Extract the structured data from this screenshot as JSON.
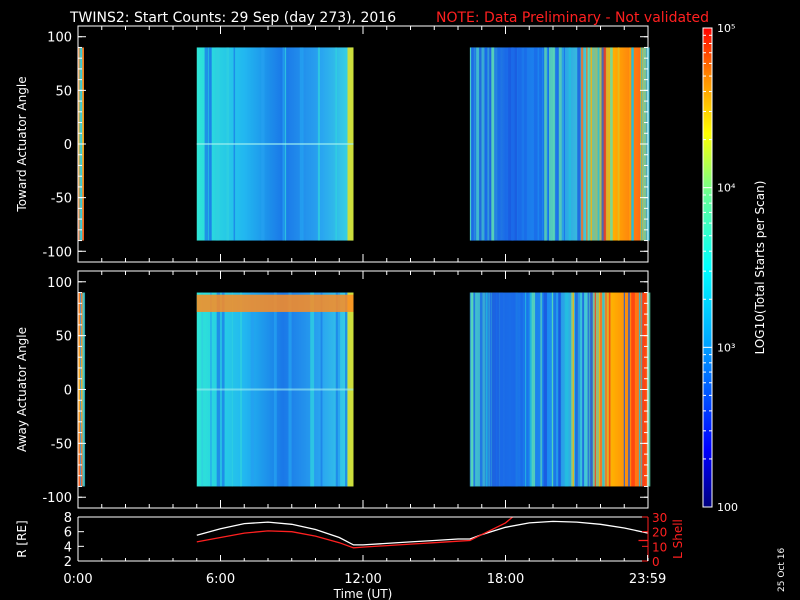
{
  "header": {
    "title": "TWINS2: Start Counts: 29 Sep (day 273), 2016",
    "note": "NOTE: Data Preliminary - Not validated"
  },
  "footer": {
    "stamp": "25 Oct 16"
  },
  "colors": {
    "background": "#000000",
    "axes": "#ffffff",
    "note": "#ff2020",
    "orbit_r": "#ffffff",
    "orbit_lshell": "#ff2020"
  },
  "chart_data": [
    {
      "type": "heatmap",
      "ylabel": "Toward Actuator Angle",
      "ylim": [
        -110,
        110
      ],
      "yticks": [
        "-100",
        "-50",
        "0",
        "50",
        "100"
      ],
      "xlim": [
        0,
        24
      ],
      "xticks": [
        "0:00",
        "6:00",
        "12:00",
        "18:00",
        "23:59"
      ],
      "data_blocks": [
        {
          "t_start": 0.0,
          "t_end": 0.25,
          "level": "high"
        },
        {
          "t_start": 5.0,
          "t_end": 11.6,
          "level": "medium-low"
        },
        {
          "t_start": 16.5,
          "t_end": 24.0,
          "level": "low-to-high"
        }
      ]
    },
    {
      "type": "heatmap",
      "ylabel": "Away Actuator Angle",
      "ylim": [
        -110,
        110
      ],
      "yticks": [
        "-100",
        "-50",
        "0",
        "50",
        "100"
      ],
      "xlim": [
        0,
        24
      ],
      "xticks": [
        "0:00",
        "6:00",
        "12:00",
        "18:00",
        "23:59"
      ],
      "data_blocks": [
        {
          "t_start": 0.0,
          "t_end": 0.25,
          "level": "high"
        },
        {
          "t_start": 5.0,
          "t_end": 11.6,
          "level": "medium-low"
        },
        {
          "t_start": 16.5,
          "t_end": 24.0,
          "level": "low-to-high"
        }
      ]
    },
    {
      "type": "colorbar",
      "label": "LOG10(Total Starts per Scan)",
      "scale": "log",
      "range": [
        100,
        100000
      ],
      "tick_labels": [
        "100",
        "10³",
        "10⁴",
        "10⁵"
      ]
    },
    {
      "type": "line",
      "xlabel": "Time (UT)",
      "ylabel_left": "R [RE]",
      "ylabel_right": "L Shell",
      "ylim_left": [
        2,
        8
      ],
      "yticks_left": [
        "2",
        "4",
        "6",
        "8"
      ],
      "ylim_right": [
        0,
        30
      ],
      "yticks_right": [
        "0",
        "10",
        "20",
        "30"
      ],
      "xticks": [
        "0:00",
        "6:00",
        "12:00",
        "18:00",
        "23:59"
      ],
      "series": [
        {
          "axis": "left",
          "x": [
            5.0,
            6.0,
            7.0,
            8.0,
            9.0,
            10.0,
            11.0,
            11.6,
            12.0,
            13.0,
            14.0,
            15.0,
            16.0,
            16.5,
            17.0,
            18.0,
            19.0,
            20.0,
            21.0,
            22.0,
            23.0,
            24.0
          ],
          "y": [
            5.5,
            6.4,
            7.1,
            7.3,
            7.0,
            6.3,
            5.2,
            4.2,
            4.2,
            4.4,
            4.6,
            4.8,
            5.0,
            5.0,
            5.6,
            6.6,
            7.2,
            7.4,
            7.3,
            7.0,
            6.5,
            5.8
          ]
        },
        {
          "axis": "right",
          "x": [
            5.0,
            6.0,
            7.0,
            8.0,
            9.0,
            10.0,
            11.0,
            11.6,
            12.0,
            13.0,
            14.0,
            15.0,
            16.0,
            16.5,
            17.0,
            18.0,
            18.3
          ],
          "y": [
            13.0,
            16.0,
            19.0,
            20.5,
            20.0,
            17.0,
            12.5,
            9.0,
            9.5,
            10.5,
            11.5,
            12.5,
            13.5,
            14.0,
            18.0,
            26.0,
            30.0
          ]
        },
        {
          "axis": "right",
          "x": [
            23.6,
            24.0
          ],
          "y": [
            14.0,
            14.0
          ]
        }
      ]
    }
  ]
}
